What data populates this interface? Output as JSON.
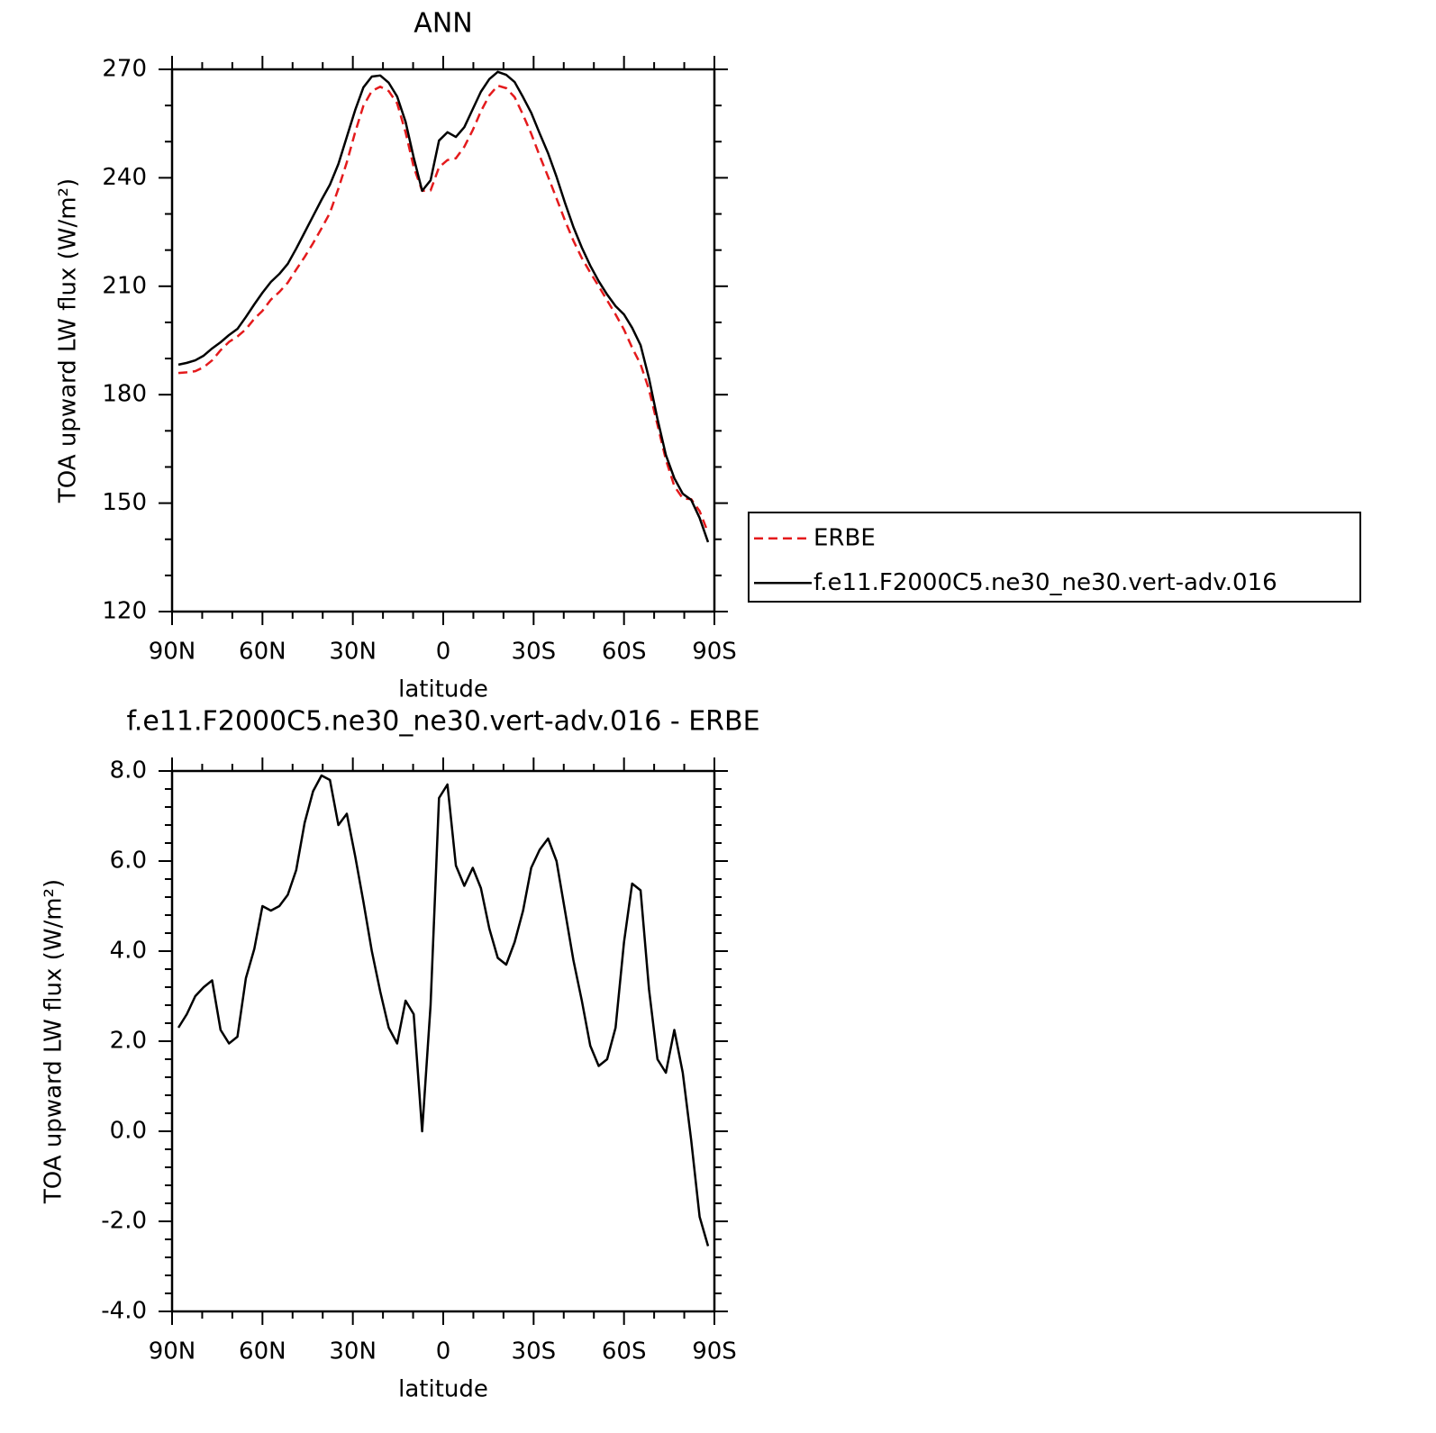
{
  "chart_data": [
    {
      "type": "line",
      "title": "ANN",
      "xlabel": "latitude",
      "ylabel": "TOA upward LW flux (W/m²)",
      "x": [
        87.9,
        85.1,
        82.3,
        79.5,
        76.7,
        73.9,
        71.1,
        68.3,
        65.5,
        62.7,
        60.0,
        57.2,
        54.4,
        51.6,
        48.8,
        46.0,
        43.2,
        40.4,
        37.6,
        34.8,
        32.0,
        29.2,
        26.5,
        23.7,
        20.9,
        18.1,
        15.3,
        12.5,
        9.8,
        7.0,
        4.2,
        1.4,
        -1.4,
        -4.2,
        -7.0,
        -9.8,
        -12.5,
        -15.3,
        -18.1,
        -20.9,
        -23.7,
        -26.5,
        -29.2,
        -32.0,
        -34.8,
        -37.6,
        -40.4,
        -43.2,
        -46.0,
        -48.8,
        -51.6,
        -54.4,
        -57.2,
        -60.0,
        -62.7,
        -65.5,
        -68.3,
        -71.1,
        -73.9,
        -76.7,
        -79.5,
        -82.3,
        -85.1,
        -87.9
      ],
      "series": [
        {
          "name": "ERBE",
          "color": "#e41a1c",
          "dash": true,
          "values": [
            186.0,
            186.2,
            186.5,
            187.6,
            189.5,
            192.3,
            194.6,
            196.1,
            198.1,
            201.0,
            203.2,
            206.3,
            208.4,
            211.0,
            214.6,
            218.1,
            221.9,
            226.0,
            230.3,
            237.0,
            244.3,
            252.7,
            259.9,
            264.0,
            265.2,
            264.0,
            260.6,
            252.6,
            243.0,
            236.4,
            236.5,
            242.9,
            244.9,
            245.4,
            248.6,
            253.2,
            258.4,
            262.8,
            265.5,
            264.8,
            262.3,
            257.4,
            252.2,
            246.1,
            240.3,
            234.3,
            228.2,
            222.6,
            217.8,
            213.8,
            210.0,
            206.1,
            202.2,
            198.0,
            193.0,
            188.4,
            181.4,
            171.7,
            162.0,
            154.7,
            151.3,
            151.1,
            147.8,
            141.8
          ]
        },
        {
          "name": "f.e11.F2000C5.ne30_ne30.vert-adv.016",
          "color": "#000000",
          "dash": false,
          "values": [
            188.3,
            188.8,
            189.5,
            190.8,
            192.8,
            194.5,
            196.5,
            198.2,
            201.5,
            205,
            208.2,
            211.2,
            213.4,
            216.2,
            220.4,
            224.9,
            229.4,
            233.9,
            238.1,
            243.8,
            251.3,
            258.8,
            265,
            268,
            268.3,
            266.3,
            262.5,
            255.5,
            245.6,
            236.4,
            239.3,
            250.3,
            252.6,
            251.3,
            254,
            259,
            263.8,
            267.3,
            269.3,
            268.5,
            266.5,
            262.3,
            258,
            252.3,
            246.8,
            240.3,
            233.1,
            226.4,
            220.7,
            215.7,
            211.4,
            207.7,
            204.5,
            202.2,
            198.5,
            193.7,
            184.5,
            173.3,
            163.3,
            156.9,
            152.6,
            150.9,
            145.9,
            139.2
          ]
        }
      ],
      "xlim": [
        90,
        -90
      ],
      "xticks": [
        {
          "value": 90,
          "label": "90N"
        },
        {
          "value": 60,
          "label": "60N"
        },
        {
          "value": 30,
          "label": "30N"
        },
        0,
        {
          "value": -30,
          "label": "30S"
        },
        {
          "value": -60,
          "label": "60S"
        },
        {
          "value": -90,
          "label": "90S"
        }
      ],
      "xminorticks": [
        80,
        70,
        50,
        40,
        20,
        10,
        -10,
        -20,
        -40,
        -50,
        -70,
        -80
      ],
      "ylim": [
        120,
        270
      ],
      "yticks": [
        120,
        150,
        180,
        210,
        240,
        270
      ],
      "yminorticks": [
        130,
        140,
        160,
        170,
        190,
        200,
        220,
        230,
        250,
        260
      ]
    },
    {
      "type": "line",
      "title": "f.e11.F2000C5.ne30_ne30.vert-adv.016 - ERBE",
      "xlabel": "latitude",
      "ylabel": "TOA upward LW flux (W/m²)",
      "x": [
        87.9,
        85.1,
        82.3,
        79.5,
        76.7,
        73.9,
        71.1,
        68.3,
        65.5,
        62.7,
        60.0,
        57.2,
        54.4,
        51.6,
        48.8,
        46.0,
        43.2,
        40.4,
        37.6,
        34.8,
        32.0,
        29.2,
        26.5,
        23.7,
        20.9,
        18.1,
        15.3,
        12.5,
        9.8,
        7.0,
        4.2,
        1.4,
        -1.4,
        -4.2,
        -7.0,
        -9.8,
        -12.5,
        -15.3,
        -18.1,
        -20.9,
        -23.7,
        -26.5,
        -29.2,
        -32.0,
        -34.8,
        -37.6,
        -40.4,
        -43.2,
        -46.0,
        -48.8,
        -51.6,
        -54.4,
        -57.2,
        -60.0,
        -62.7,
        -65.5,
        -68.3,
        -71.1,
        -73.9,
        -76.7,
        -79.5,
        -82.3,
        -85.1,
        -87.9
      ],
      "color": "#000000",
      "values": [
        2.3,
        2.6,
        3.0,
        3.2,
        3.35,
        2.25,
        1.95,
        2.1,
        3.4,
        4.05,
        5.0,
        4.9,
        5.0,
        5.25,
        5.8,
        6.85,
        7.55,
        7.9,
        7.8,
        6.8,
        7.05,
        6.1,
        5.1,
        4.0,
        3.1,
        2.3,
        1.95,
        2.9,
        2.6,
        0.0,
        2.8,
        7.4,
        7.7,
        5.9,
        5.45,
        5.85,
        5.4,
        4.5,
        3.85,
        3.7,
        4.2,
        4.9,
        5.85,
        6.25,
        6.5,
        6.0,
        4.9,
        3.8,
        2.9,
        1.9,
        1.45,
        1.6,
        2.3,
        4.2,
        5.5,
        5.35,
        3.15,
        1.6,
        1.3,
        2.25,
        1.3,
        -0.2,
        -1.9,
        -2.55
      ],
      "xlim": [
        90,
        -90
      ],
      "xticks": [
        {
          "value": 90,
          "label": "90N"
        },
        {
          "value": 60,
          "label": "60N"
        },
        {
          "value": 30,
          "label": "30N"
        },
        0,
        {
          "value": -30,
          "label": "30S"
        },
        {
          "value": -60,
          "label": "60S"
        },
        {
          "value": -90,
          "label": "90S"
        }
      ],
      "xminorticks": [
        80,
        70,
        50,
        40,
        20,
        10,
        -10,
        -20,
        -40,
        -50,
        -70,
        -80
      ],
      "ylim": [
        -4,
        8
      ],
      "yticks": [
        {
          "value": -4,
          "label": "-4.0"
        },
        {
          "value": -2,
          "label": "-2.0"
        },
        {
          "value": 0,
          "label": "0.0"
        },
        {
          "value": 2,
          "label": "2.0"
        },
        {
          "value": 4,
          "label": "4.0"
        },
        {
          "value": 6,
          "label": "6.0"
        },
        {
          "value": 8,
          "label": "8.0"
        }
      ],
      "yminorticks": [
        -3.6,
        -3.2,
        -2.8,
        -2.4,
        -1.6,
        -1.2,
        -0.8,
        -0.4,
        0.4,
        0.8,
        1.2,
        1.6,
        2.4,
        2.8,
        3.2,
        3.6,
        4.4,
        4.8,
        5.2,
        5.6,
        6.4,
        6.8,
        7.2,
        7.6
      ]
    }
  ]
}
